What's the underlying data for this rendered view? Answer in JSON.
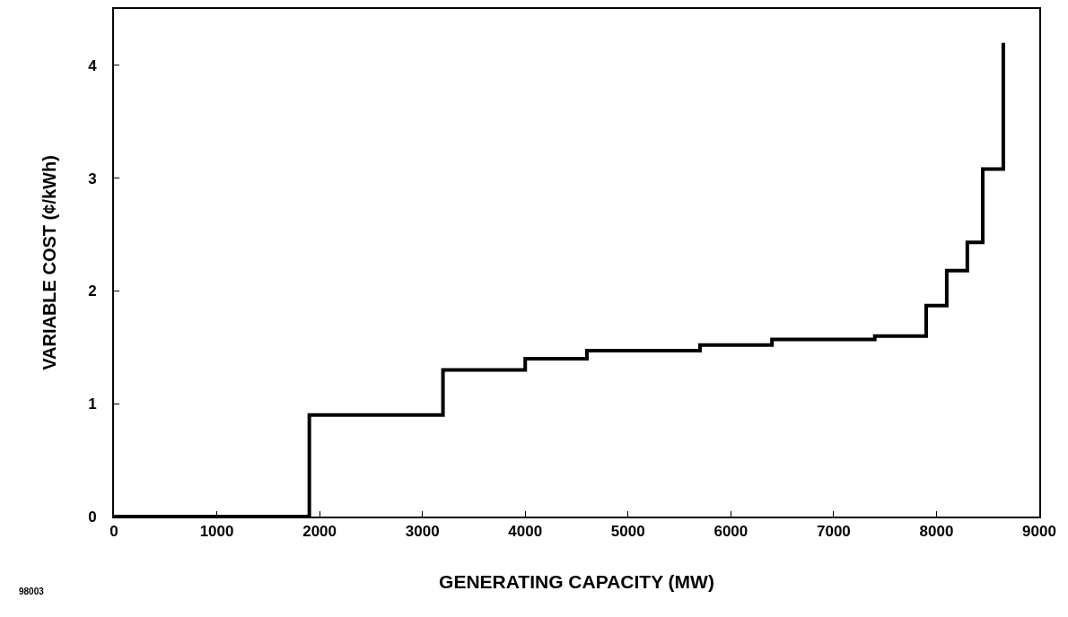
{
  "chart_data": {
    "type": "step",
    "xlabel": "GENERATING CAPACITY (MW)",
    "ylabel": "VARIABLE COST (¢/kWh)",
    "x": [
      0,
      1900,
      3200,
      4000,
      4600,
      5700,
      6400,
      7400,
      7900,
      8100,
      8300,
      8450,
      8650
    ],
    "series": [
      {
        "color": "#000000",
        "values": [
          0,
          0.9,
          1.3,
          1.4,
          1.47,
          1.52,
          1.57,
          1.6,
          1.87,
          2.18,
          2.43,
          3.08,
          4.2
        ]
      }
    ],
    "xlim": [
      0,
      9000
    ],
    "xticks": [
      0,
      1000,
      2000,
      3000,
      4000,
      5000,
      6000,
      7000,
      8000,
      9000
    ],
    "ylim": [
      0,
      4.5
    ],
    "yticks": [
      0,
      1,
      2,
      3,
      4
    ],
    "grid": false,
    "marker": "none",
    "line_style": "solid",
    "annotations": [
      "98003"
    ]
  }
}
